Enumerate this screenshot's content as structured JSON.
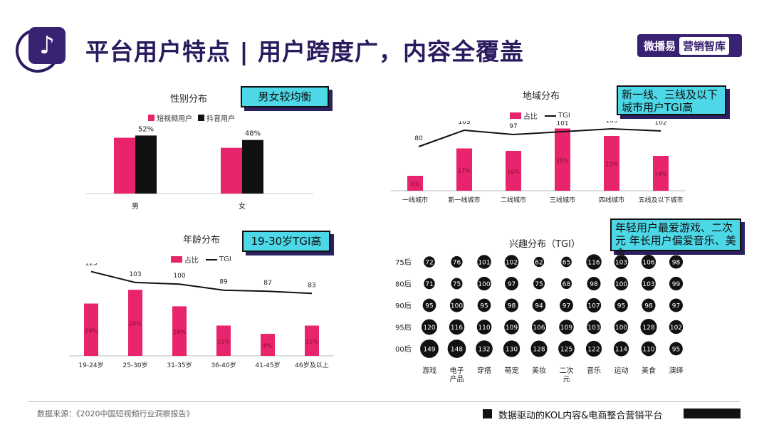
{
  "header": {
    "title": "平台用户特点 | 用户跨度广，内容全覆盖",
    "brand_left": "微播易",
    "brand_right": "营销智库"
  },
  "colors": {
    "accent": "#e8246c",
    "dark": "#111111",
    "callout": "#4dd8e8",
    "brand": "#3a2272"
  },
  "footer": {
    "source": "数据来源：《2020中国短视频行业洞察报告》",
    "tagline": "数据驱动的KOL内容&电商整合营销平台"
  },
  "callouts": {
    "gender": "男女较均衡",
    "region": "新一线、三线及以下城市用户TGI高",
    "age": "19-30岁TGI高",
    "interest": "年轻用户最爱游戏、二次元 年长用户偏爱音乐、美食"
  },
  "chart_data": [
    {
      "id": "gender",
      "type": "bar",
      "title": "性别分布",
      "categories": [
        "男",
        "女"
      ],
      "series": [
        {
          "name": "短视频用户",
          "values": [
            50,
            41
          ],
          "color": "#e8246c"
        },
        {
          "name": "抖音用户",
          "values": [
            52,
            48
          ],
          "color": "#111111"
        }
      ],
      "labels": [
        "52%",
        "48%"
      ],
      "ylim": [
        0,
        65
      ]
    },
    {
      "id": "region",
      "type": "bar",
      "title": "地域分布",
      "categories": [
        "一线城市",
        "新一线城市",
        "二线城市",
        "三线城市",
        "四线城市",
        "五线及以下城市"
      ],
      "series": [
        {
          "name": "占比",
          "values": [
            6,
            17,
            16,
            25,
            22,
            14
          ],
          "color": "#e8246c"
        },
        {
          "name": "TGI",
          "values": [
            80,
            103,
            97,
            101,
            105,
            102
          ],
          "color": "#111111"
        }
      ],
      "value_labels": [
        "6%",
        "17%",
        "16%",
        "25%",
        "22%",
        "14%"
      ],
      "ylim": [
        0,
        30
      ],
      "tgi_lim": [
        -10,
        116
      ]
    },
    {
      "id": "age",
      "type": "bar",
      "title": "年龄分布",
      "categories": [
        "19-24岁",
        "25-30岁",
        "31-35岁",
        "36-40岁",
        "41-45岁",
        "46岁及以上"
      ],
      "series": [
        {
          "name": "占比",
          "values": [
            19,
            24,
            18,
            11,
            8,
            11
          ],
          "color": "#e8246c"
        },
        {
          "name": "TGI",
          "values": [
            123,
            103,
            100,
            89,
            87,
            83
          ],
          "color": "#111111"
        }
      ],
      "value_labels": [
        "19%",
        "24%",
        "18%",
        "11%",
        "8%",
        "11%"
      ],
      "ylim": [
        0,
        30
      ],
      "tgi_lim": [
        -70,
        138
      ]
    },
    {
      "id": "interest",
      "type": "table",
      "title": "兴趣分布（TGI）",
      "rows": [
        "75后",
        "80后",
        "90后",
        "95后",
        "00后"
      ],
      "columns": [
        "游戏",
        "电子产品",
        "穿搭",
        "萌宠",
        "美妆",
        "二次元",
        "音乐",
        "运动",
        "美食",
        "演绎"
      ],
      "column_display": [
        [
          "游戏"
        ],
        [
          "电子",
          "产品"
        ],
        [
          "穿搭"
        ],
        [
          "萌宠"
        ],
        [
          "美妆"
        ],
        [
          "二次",
          "元"
        ],
        [
          "音乐"
        ],
        [
          "运动"
        ],
        [
          "美食"
        ],
        [
          "演绎"
        ]
      ],
      "values": [
        [
          72,
          76,
          101,
          102,
          62,
          65,
          116,
          103,
          106,
          98
        ],
        [
          71,
          75,
          100,
          97,
          75,
          68,
          98,
          100,
          103,
          99
        ],
        [
          95,
          100,
          95,
          98,
          94,
          97,
          107,
          95,
          98,
          97
        ],
        [
          120,
          116,
          110,
          109,
          106,
          109,
          103,
          100,
          128,
          102
        ],
        [
          149,
          148,
          132,
          130,
          128,
          125,
          122,
          114,
          110,
          95
        ]
      ]
    }
  ]
}
